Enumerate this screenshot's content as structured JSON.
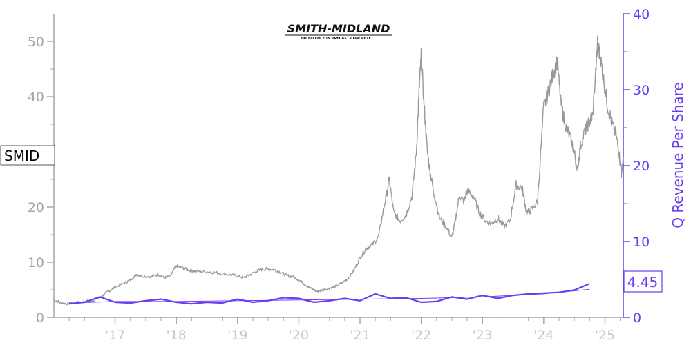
{
  "logo": {
    "name": "SMITH-MIDLAND",
    "tagline": "EXCELLENCE IN PRECAST CONCRETE"
  },
  "colors": {
    "price": "#999999",
    "revenue": "#6a3df2",
    "left_axis": "#a6a6a6",
    "x_tick": "#c8c8c8"
  },
  "chart_data": {
    "type": "line",
    "ticker": "SMID",
    "right_axis_label": "Q Revenue Per Share",
    "last_revenue_label": "4.45",
    "x_ticks": [
      "'17",
      "'18",
      "'19",
      "'20",
      "'21",
      "'22",
      "'23",
      "'24",
      "'25"
    ],
    "x_tick_years": [
      2017,
      2018,
      2019,
      2020,
      2021,
      2022,
      2023,
      2024,
      2025
    ],
    "xlim": [
      2016.0,
      2025.3
    ],
    "left_ylim": [
      0,
      55
    ],
    "left_ticks": [
      0,
      10,
      20,
      30,
      40,
      50
    ],
    "right_ylim": [
      0,
      40
    ],
    "right_ticks": [
      0,
      10,
      20,
      30,
      40
    ],
    "series": [
      {
        "name": "SMID",
        "axis": "left",
        "points": [
          [
            2016.0,
            3.2
          ],
          [
            2016.1,
            2.7
          ],
          [
            2016.2,
            2.5
          ],
          [
            2016.35,
            2.6
          ],
          [
            2016.5,
            2.9
          ],
          [
            2016.6,
            3.0
          ],
          [
            2016.7,
            3.3
          ],
          [
            2016.8,
            4.0
          ],
          [
            2016.9,
            4.8
          ],
          [
            2017.0,
            5.5
          ],
          [
            2017.15,
            6.2
          ],
          [
            2017.25,
            6.8
          ],
          [
            2017.35,
            7.8
          ],
          [
            2017.45,
            7.5
          ],
          [
            2017.6,
            7.4
          ],
          [
            2017.7,
            7.8
          ],
          [
            2017.8,
            7.2
          ],
          [
            2017.9,
            7.4
          ],
          [
            2018.0,
            9.4
          ],
          [
            2018.1,
            8.9
          ],
          [
            2018.2,
            8.6
          ],
          [
            2018.3,
            8.4
          ],
          [
            2018.45,
            8.3
          ],
          [
            2018.6,
            8.2
          ],
          [
            2018.75,
            7.9
          ],
          [
            2018.9,
            7.7
          ],
          [
            2019.0,
            7.5
          ],
          [
            2019.1,
            7.2
          ],
          [
            2019.2,
            7.7
          ],
          [
            2019.3,
            8.3
          ],
          [
            2019.4,
            8.7
          ],
          [
            2019.5,
            8.8
          ],
          [
            2019.6,
            8.6
          ],
          [
            2019.7,
            8.2
          ],
          [
            2019.8,
            7.6
          ],
          [
            2019.9,
            7.4
          ],
          [
            2020.0,
            6.8
          ],
          [
            2020.1,
            6.0
          ],
          [
            2020.2,
            5.2
          ],
          [
            2020.3,
            4.7
          ],
          [
            2020.4,
            5.0
          ],
          [
            2020.5,
            5.3
          ],
          [
            2020.6,
            5.6
          ],
          [
            2020.7,
            6.2
          ],
          [
            2020.8,
            7.0
          ],
          [
            2020.9,
            8.5
          ],
          [
            2021.0,
            10.8
          ],
          [
            2021.1,
            12.5
          ],
          [
            2021.2,
            13.2
          ],
          [
            2021.3,
            14.5
          ],
          [
            2021.4,
            20.5
          ],
          [
            2021.48,
            25.0
          ],
          [
            2021.55,
            19.0
          ],
          [
            2021.65,
            17.5
          ],
          [
            2021.75,
            18.5
          ],
          [
            2021.85,
            22.0
          ],
          [
            2021.92,
            30.0
          ],
          [
            2021.97,
            42.0
          ],
          [
            2022.0,
            47.2
          ],
          [
            2022.05,
            38.0
          ],
          [
            2022.1,
            30.0
          ],
          [
            2022.15,
            26.0
          ],
          [
            2022.2,
            23.0
          ],
          [
            2022.3,
            18.0
          ],
          [
            2022.4,
            16.5
          ],
          [
            2022.5,
            14.5
          ],
          [
            2022.55,
            17.0
          ],
          [
            2022.62,
            22.0
          ],
          [
            2022.7,
            21.0
          ],
          [
            2022.75,
            23.0
          ],
          [
            2022.85,
            22.0
          ],
          [
            2022.95,
            19.0
          ],
          [
            2023.05,
            17.5
          ],
          [
            2023.15,
            17.0
          ],
          [
            2023.25,
            18.0
          ],
          [
            2023.35,
            16.5
          ],
          [
            2023.45,
            17.5
          ],
          [
            2023.55,
            24.0
          ],
          [
            2023.65,
            23.5
          ],
          [
            2023.72,
            19.0
          ],
          [
            2023.8,
            19.5
          ],
          [
            2023.9,
            21.0
          ],
          [
            2024.0,
            38.0
          ],
          [
            2024.08,
            41.0
          ],
          [
            2024.15,
            44.0
          ],
          [
            2024.22,
            46.5
          ],
          [
            2024.28,
            39.0
          ],
          [
            2024.35,
            35.0
          ],
          [
            2024.42,
            33.0
          ],
          [
            2024.5,
            30.0
          ],
          [
            2024.55,
            26.5
          ],
          [
            2024.6,
            31.0
          ],
          [
            2024.68,
            34.0
          ],
          [
            2024.75,
            35.5
          ],
          [
            2024.8,
            36.5
          ],
          [
            2024.88,
            49.5
          ],
          [
            2024.92,
            47.5
          ],
          [
            2024.98,
            43.0
          ],
          [
            2025.05,
            38.0
          ],
          [
            2025.12,
            35.0
          ],
          [
            2025.18,
            33.0
          ],
          [
            2025.23,
            30.0
          ],
          [
            2025.27,
            26.0
          ],
          [
            2025.3,
            29.0
          ]
        ]
      },
      {
        "name": "Q Revenue Per Share",
        "axis": "right",
        "points": [
          [
            2016.25,
            1.8
          ],
          [
            2016.5,
            2.0
          ],
          [
            2016.75,
            2.7
          ],
          [
            2017.0,
            2.0
          ],
          [
            2017.25,
            1.9
          ],
          [
            2017.5,
            2.2
          ],
          [
            2017.75,
            2.4
          ],
          [
            2018.0,
            2.0
          ],
          [
            2018.25,
            1.8
          ],
          [
            2018.5,
            2.0
          ],
          [
            2018.75,
            1.9
          ],
          [
            2019.0,
            2.4
          ],
          [
            2019.25,
            2.0
          ],
          [
            2019.5,
            2.2
          ],
          [
            2019.75,
            2.6
          ],
          [
            2020.0,
            2.5
          ],
          [
            2020.25,
            2.0
          ],
          [
            2020.5,
            2.2
          ],
          [
            2020.75,
            2.5
          ],
          [
            2021.0,
            2.2
          ],
          [
            2021.25,
            3.1
          ],
          [
            2021.5,
            2.5
          ],
          [
            2021.75,
            2.6
          ],
          [
            2022.0,
            2.0
          ],
          [
            2022.25,
            2.1
          ],
          [
            2022.5,
            2.7
          ],
          [
            2022.75,
            2.4
          ],
          [
            2023.0,
            2.9
          ],
          [
            2023.25,
            2.5
          ],
          [
            2023.5,
            2.9
          ],
          [
            2023.75,
            3.1
          ],
          [
            2024.0,
            3.2
          ],
          [
            2024.25,
            3.3
          ],
          [
            2024.5,
            3.6
          ],
          [
            2024.75,
            4.45
          ]
        ]
      },
      {
        "name": "trend",
        "axis": "right",
        "points": [
          [
            2016.25,
            1.9
          ],
          [
            2017.0,
            2.1
          ],
          [
            2018.0,
            2.1
          ],
          [
            2019.0,
            2.2
          ],
          [
            2020.0,
            2.3
          ],
          [
            2021.0,
            2.4
          ],
          [
            2022.0,
            2.5
          ],
          [
            2023.0,
            2.7
          ],
          [
            2024.0,
            3.1
          ],
          [
            2024.75,
            3.7
          ]
        ]
      }
    ]
  }
}
